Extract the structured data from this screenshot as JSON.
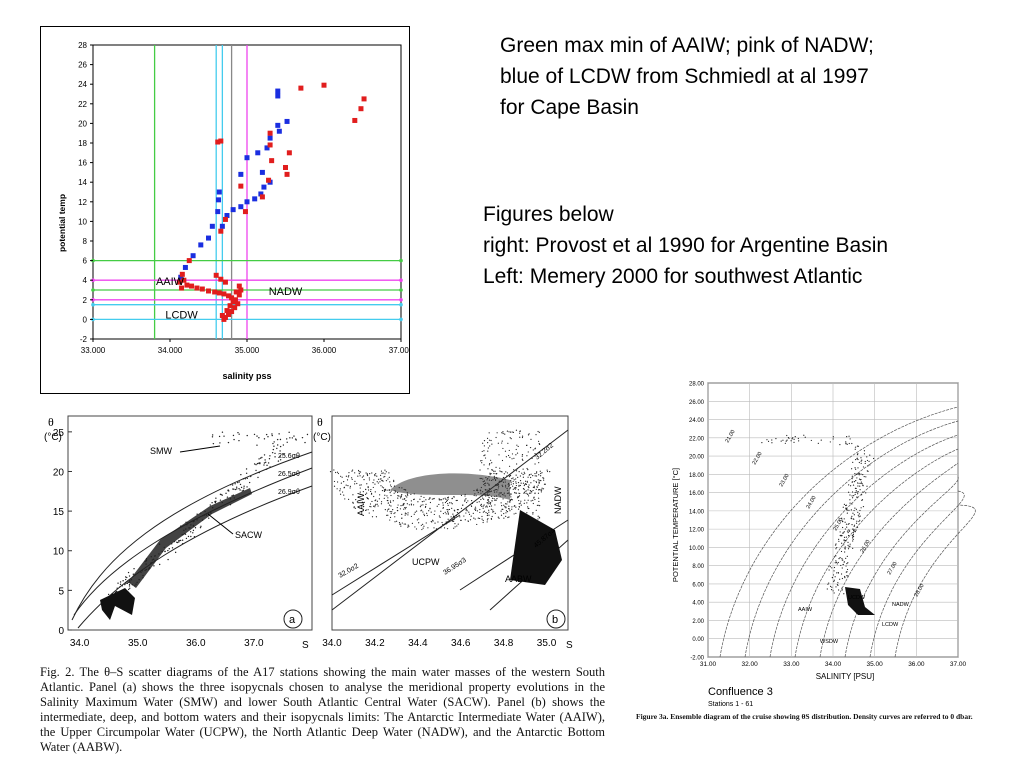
{
  "annotation": {
    "top_note": "Green max min of AAIW; pink of NADW;\nblue of LCDW from Schmiedl at al 1997\nfor Cape Basin",
    "figures_note": "Figures below\nright: Provost et al 1990 for Argentine Basin\nLeft: Memery 2000 for southwest Atlantic"
  },
  "colors": {
    "green": "#44cc44",
    "pink": "#ee44ee",
    "blue": "#44ccee",
    "gray": "#888888",
    "red_pts": "#e11d1d",
    "blue_pts": "#1a2ee0"
  },
  "chart_data": [
    {
      "type": "scatter",
      "title": "",
      "xlabel": "salinity pss",
      "ylabel": "potential temp",
      "xlim": [
        33.0,
        37.0
      ],
      "ylim": [
        -2,
        28
      ],
      "xticks": [
        "33.000",
        "34.000",
        "35.000",
        "36.000",
        "37.000"
      ],
      "yticks": [
        "-2",
        "0",
        "2",
        "4",
        "6",
        "8",
        "10",
        "12",
        "14",
        "16",
        "18",
        "20",
        "22",
        "24",
        "26",
        "28"
      ],
      "vlines": [
        {
          "x": 33.8,
          "color": "green"
        },
        {
          "x": 34.6,
          "color": "blue"
        },
        {
          "x": 34.68,
          "color": "blue"
        },
        {
          "x": 34.8,
          "color": "gray"
        },
        {
          "x": 35.0,
          "color": "pink"
        }
      ],
      "hlines": [
        {
          "y": 6.0,
          "color": "green"
        },
        {
          "y": 4.0,
          "color": "pink"
        },
        {
          "y": 2.0,
          "color": "pink"
        },
        {
          "y": 3.0,
          "color": "green"
        },
        {
          "y": 1.5,
          "color": "blue"
        },
        {
          "y": 0.0,
          "color": "blue"
        }
      ],
      "labels": [
        {
          "text": "AAIW",
          "x": 34.0,
          "y": 3.5
        },
        {
          "text": "NADW",
          "x": 35.5,
          "y": 2.5
        },
        {
          "text": "LCDW",
          "x": 34.15,
          "y": 0.1
        }
      ],
      "series": [
        {
          "color": "blue",
          "points": [
            [
              34.14,
              4.3
            ],
            [
              34.2,
              5.3
            ],
            [
              34.3,
              6.5
            ],
            [
              34.4,
              7.6
            ],
            [
              34.5,
              8.3
            ],
            [
              34.55,
              9.5
            ],
            [
              34.62,
              11.0
            ],
            [
              34.63,
              12.2
            ],
            [
              34.64,
              13.0
            ],
            [
              34.68,
              9.5
            ],
            [
              34.74,
              10.6
            ],
            [
              34.82,
              11.2
            ],
            [
              34.92,
              11.5
            ],
            [
              35.0,
              12.0
            ],
            [
              35.1,
              12.3
            ],
            [
              35.18,
              12.8
            ],
            [
              35.22,
              13.5
            ],
            [
              35.3,
              14.0
            ],
            [
              35.2,
              15.0
            ],
            [
              34.92,
              14.8
            ],
            [
              35.0,
              16.5
            ],
            [
              35.14,
              17.0
            ],
            [
              35.26,
              17.5
            ],
            [
              35.3,
              18.5
            ],
            [
              35.42,
              19.2
            ],
            [
              35.52,
              20.2
            ],
            [
              35.4,
              19.8
            ],
            [
              35.4,
              22.8
            ],
            [
              35.4,
              23.3
            ]
          ]
        },
        {
          "color": "red",
          "points": [
            [
              34.12,
              3.8
            ],
            [
              34.15,
              3.2
            ],
            [
              34.22,
              3.5
            ],
            [
              34.28,
              3.4
            ],
            [
              34.35,
              3.2
            ],
            [
              34.42,
              3.1
            ],
            [
              34.5,
              2.9
            ],
            [
              34.58,
              2.8
            ],
            [
              34.64,
              2.7
            ],
            [
              34.7,
              2.6
            ],
            [
              34.76,
              2.4
            ],
            [
              34.8,
              2.2
            ],
            [
              34.85,
              2.0
            ],
            [
              34.9,
              2.5
            ],
            [
              34.92,
              3.0
            ],
            [
              34.88,
              1.6
            ],
            [
              34.84,
              1.2
            ],
            [
              34.8,
              0.8
            ],
            [
              34.76,
              0.5
            ],
            [
              34.72,
              0.2
            ],
            [
              34.7,
              0.0
            ],
            [
              34.68,
              0.4
            ],
            [
              34.74,
              0.9
            ],
            [
              34.78,
              1.4
            ],
            [
              34.82,
              1.8
            ],
            [
              34.86,
              2.8
            ],
            [
              34.9,
              3.4
            ],
            [
              34.72,
              3.8
            ],
            [
              34.66,
              4.1
            ],
            [
              34.6,
              4.5
            ],
            [
              34.16,
              4.6
            ],
            [
              34.18,
              4.0
            ],
            [
              34.25,
              6.0
            ],
            [
              34.66,
              9.0
            ],
            [
              34.72,
              10.2
            ],
            [
              34.62,
              18.1
            ],
            [
              34.66,
              18.2
            ],
            [
              34.92,
              13.6
            ],
            [
              34.98,
              11.0
            ],
            [
              35.2,
              12.5
            ],
            [
              35.28,
              14.2
            ],
            [
              35.32,
              16.2
            ],
            [
              35.3,
              17.8
            ],
            [
              35.3,
              19.0
            ],
            [
              35.5,
              15.5
            ],
            [
              35.52,
              14.8
            ],
            [
              35.55,
              17.0
            ],
            [
              35.7,
              23.6
            ],
            [
              36.0,
              23.9
            ],
            [
              36.4,
              20.3
            ],
            [
              36.48,
              21.5
            ],
            [
              36.52,
              22.5
            ]
          ]
        }
      ]
    },
    {
      "type": "scatter",
      "panel": "a",
      "title": "",
      "xlabel": "S",
      "ylabel": "θ (°C)",
      "xlim": [
        33.8,
        38.0
      ],
      "ylim": [
        0,
        27
      ],
      "xticks": [
        "34.0",
        "35.0",
        "36.0",
        "37.0"
      ],
      "yticks": [
        "0",
        "5",
        "10",
        "15",
        "20",
        "25"
      ],
      "labels": [
        {
          "text": "SMW"
        },
        {
          "text": "SACW"
        },
        {
          "text": "25.6σθ"
        },
        {
          "text": "26.5σθ"
        },
        {
          "text": "26.9σθ"
        }
      ]
    },
    {
      "type": "scatter",
      "panel": "b",
      "title": "",
      "xlabel": "S",
      "ylabel": "θ (°C)",
      "xlim": [
        34.0,
        35.1
      ],
      "ylim": [
        0,
        27
      ],
      "xticks": [
        "34.0",
        "34.2",
        "34.4",
        "34.6",
        "34.8",
        "35.0"
      ],
      "labels": [
        {
          "text": "AAIW"
        },
        {
          "text": "NADW"
        },
        {
          "text": "UCPW"
        },
        {
          "text": "AABW"
        },
        {
          "text": "32.2σ2"
        },
        {
          "text": "32.0σ2"
        },
        {
          "text": "36.95σ3"
        },
        {
          "text": "45.87σ4"
        }
      ]
    },
    {
      "type": "scatter",
      "title": "Confluence 3",
      "subtitle": "Stations 1 - 61",
      "xlabel": "SALINITY [PSU]",
      "ylabel": "POTENTIAL TEMPERATURE [°C]",
      "xlim": [
        31.0,
        37.0
      ],
      "ylim": [
        -2,
        28
      ],
      "xticks": [
        "31.00",
        "32.00",
        "33.00",
        "34.00",
        "35.00",
        "36.00",
        "37.00"
      ],
      "yticks": [
        "-2.00",
        "0.00",
        "2.00",
        "4.00",
        "6.00",
        "8.00",
        "10.00",
        "12.00",
        "14.00",
        "16.00",
        "18.00",
        "20.00",
        "22.00",
        "24.00",
        "26.00",
        "28.00"
      ],
      "density_labels": [
        "21.00",
        "22.00",
        "23.00",
        "24.00",
        "25.00",
        "26.00",
        "27.00",
        "28.00"
      ],
      "labels": [
        {
          "text": "UCDW"
        },
        {
          "text": "NADW"
        },
        {
          "text": "AAIW"
        },
        {
          "text": "LCDW"
        },
        {
          "text": "WSDW"
        }
      ]
    }
  ],
  "captions": {
    "fig2": "Fig. 2.   The θ–S scatter diagrams of the A17 stations showing the main water masses of the western South Atlantic. Panel (a) shows the three isopycnals chosen to analyse the meridional property evolutions in the Salinity Maximum Water (SMW) and lower South Atlantic Central Water (SACW). Panel (b) shows the intermediate, deep, and bottom waters and their isopycnals limits: The Antarctic Intermediate Water (AAIW), the Upper Circumpolar Water (UCPW), the North Atlantic Deep Water (NADW), and the Antarctic Bottom Water (AABW).",
    "fig3a": "Figure 3a.   Ensemble diagram of the cruise showing θS distribution. Density curves are referred to 0 dbar."
  }
}
